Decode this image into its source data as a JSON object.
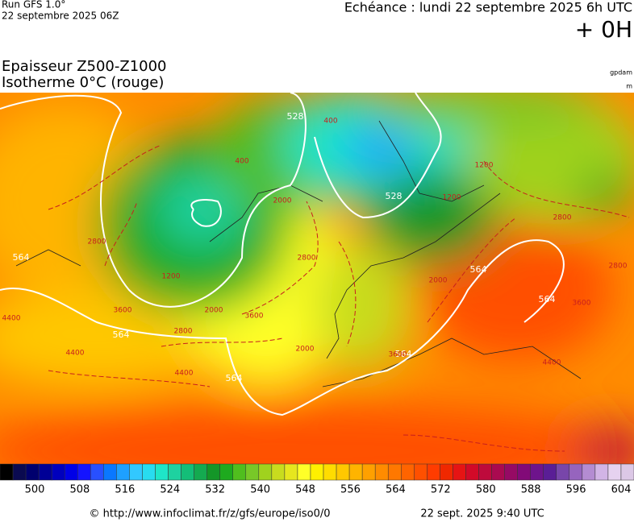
{
  "header": {
    "run": "Run GFS 1.0°",
    "date": "22 septembre 2025 06Z",
    "echeance": "Echéance : lundi 22 septembre 2025 6h UTC",
    "offset": "+ 0H"
  },
  "legend": {
    "line1": "Epaisseur Z500-Z1000",
    "line2": "Isotherme 0°C (rouge)",
    "unit1": "gpdam",
    "unit2": "m"
  },
  "map": {
    "thickness_labels": [
      "528",
      "528",
      "564",
      "564",
      "564",
      "564",
      "564",
      "564"
    ],
    "isotherm_labels": [
      "2000",
      "2000",
      "2000",
      "2800",
      "2800",
      "2800",
      "3600",
      "3600",
      "3600",
      "4400",
      "4400",
      "4400",
      "1200",
      "1200",
      "400",
      "400",
      "2000",
      "2800",
      "3600",
      "4400",
      "1200",
      "2800"
    ]
  },
  "colorbar": {
    "ticks": [
      500,
      508,
      516,
      524,
      532,
      540,
      548,
      556,
      564,
      572,
      580,
      588,
      596,
      604
    ],
    "colors": [
      "#000000",
      "#0a0a50",
      "#00006e",
      "#000096",
      "#0000be",
      "#0000e6",
      "#1414ff",
      "#2850ff",
      "#0a78ff",
      "#1ea0ff",
      "#32c8ff",
      "#28dcf0",
      "#1ee6c8",
      "#1ed2a0",
      "#14be78",
      "#14aa50",
      "#149628",
      "#1eaa1e",
      "#50be1e",
      "#78c828",
      "#a0d21e",
      "#c8dc1e",
      "#e6e61e",
      "#ffff28",
      "#fff000",
      "#ffdc00",
      "#ffc800",
      "#ffb400",
      "#ffa000",
      "#ff8c00",
      "#ff7800",
      "#ff6400",
      "#ff5000",
      "#ff3c00",
      "#f02800",
      "#e61414",
      "#d20a28",
      "#be0a3c",
      "#aa0a50",
      "#960a64",
      "#820a78",
      "#6e148c",
      "#5a1e96",
      "#7846aa",
      "#9664be",
      "#b48cd2",
      "#d2b4e6",
      "#e6d2f0",
      "#dcc8e6"
    ]
  },
  "footer": {
    "url": "© http://www.infoclimat.fr/z/gfs/europe/iso0/0",
    "timestamp": "22 sept. 2025  9:40 UTC"
  }
}
